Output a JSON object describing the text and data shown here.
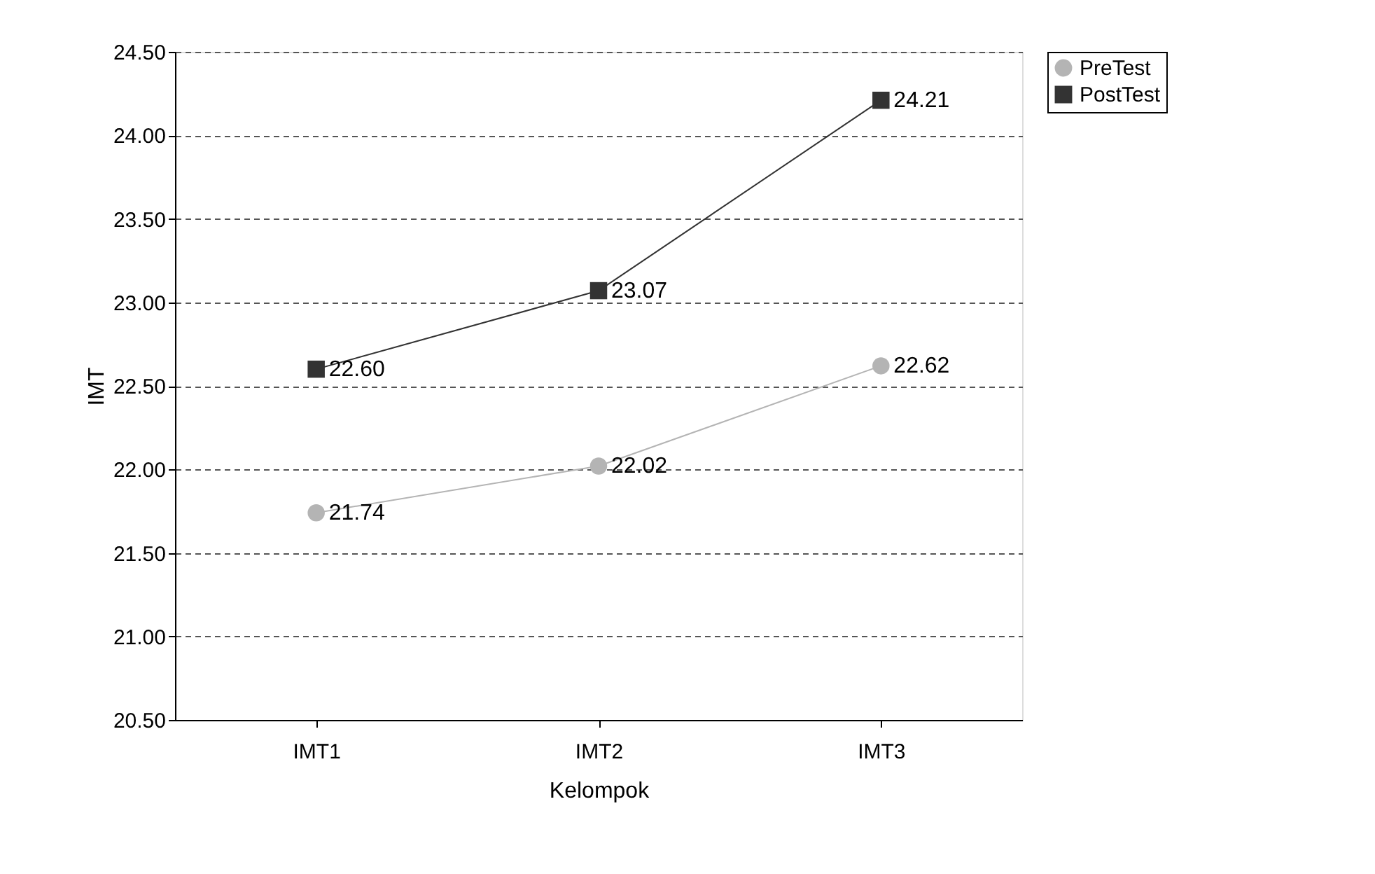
{
  "chart_data": {
    "type": "line",
    "xlabel": "Kelompok",
    "ylabel": "IMT",
    "categories": [
      "IMT1",
      "IMT2",
      "IMT3"
    ],
    "series": [
      {
        "name": "PreTest",
        "color": "#b4b4b4",
        "marker": "circle",
        "values": [
          21.74,
          22.02,
          22.62
        ],
        "value_labels": [
          "21.74",
          "22.02",
          "22.62"
        ]
      },
      {
        "name": "PostTest",
        "color": "#333333",
        "marker": "square",
        "values": [
          22.6,
          23.07,
          24.21
        ],
        "value_labels": [
          "22.60",
          "23.07",
          "24.21"
        ]
      }
    ],
    "ylim": [
      20.5,
      24.5
    ],
    "yticks": [
      {
        "value": 20.5,
        "label": "20.50"
      },
      {
        "value": 21,
        "label": "21.00"
      },
      {
        "value": 21.5,
        "label": "21.50"
      },
      {
        "value": 22,
        "label": "22.00"
      },
      {
        "value": 22.5,
        "label": "22.50"
      },
      {
        "value": 23,
        "label": "23.00"
      },
      {
        "value": 23.5,
        "label": "23.50"
      },
      {
        "value": 24,
        "label": "24.00"
      },
      {
        "value": 24.5,
        "label": "24.50"
      }
    ],
    "grid": "y",
    "legend": "right",
    "line_style": "solid"
  }
}
